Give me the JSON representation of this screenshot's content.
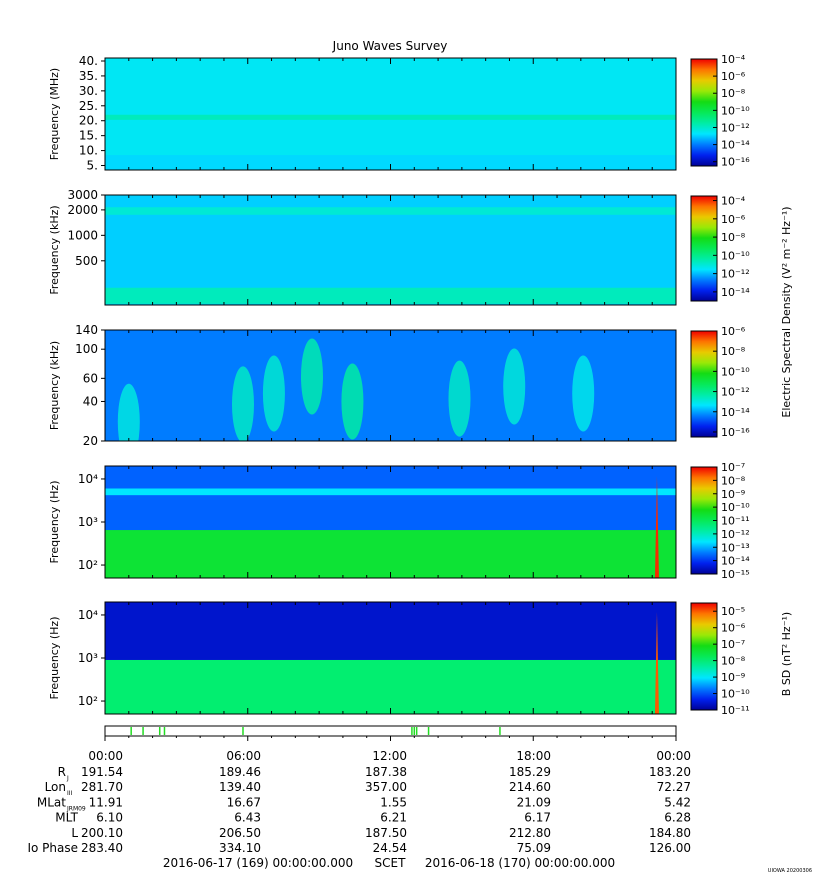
{
  "title": "Juno Waves Survey",
  "corner_stamp": "UIOWA 20200306",
  "cbar_label_E": "Electric Spectral Density (V² m⁻² Hz⁻¹)",
  "cbar_label_B": "B SD (nT² Hz⁻¹)",
  "chart_data": [
    {
      "type": "heatmap",
      "panel": "high-frequency",
      "ylabel": "Frequency (MHz)",
      "yscale": "linear",
      "ylim": [
        3.5,
        41
      ],
      "yticks": [
        5,
        10,
        15,
        20,
        25,
        30,
        35,
        40
      ],
      "ytick_labels": [
        "5.",
        "10.",
        "15.",
        "20.",
        "25.",
        "30.",
        "35.",
        "40."
      ],
      "cbar_range": [
        -16.5,
        -4
      ],
      "cbar_ticks": [
        -4,
        -6,
        -8,
        -10,
        -12,
        -14,
        -16
      ],
      "background_log_level": -12.6,
      "features": [
        {
          "kind": "band",
          "y0": 20.3,
          "y1": 22.0,
          "level": -11.8
        },
        {
          "kind": "band",
          "y0": 3.5,
          "y1": 8.5,
          "level": -12.9
        }
      ]
    },
    {
      "type": "heatmap",
      "panel": "medium-frequency",
      "ylabel": "Frequency (kHz)",
      "yscale": "log",
      "ylim": [
        150,
        3000
      ],
      "yticks": [
        500,
        1000,
        2000,
        3000
      ],
      "ytick_labels": [
        "500",
        "1000",
        "2000",
        "3000"
      ],
      "cbar_range": [
        -15,
        -3.5
      ],
      "cbar_ticks": [
        -4,
        -6,
        -8,
        -10,
        -12,
        -14
      ],
      "background_log_level": -11.8,
      "features": [
        {
          "kind": "band",
          "y0": 1750,
          "y1": 2150,
          "level": -11.0
        },
        {
          "kind": "band",
          "y0": 155,
          "y1": 240,
          "level": -10.7
        }
      ]
    },
    {
      "type": "heatmap",
      "panel": "low-frequency",
      "ylabel": "Frequency (kHz)",
      "yscale": "log",
      "ylim": [
        20,
        140
      ],
      "yticks": [
        20,
        40,
        60,
        100,
        140
      ],
      "ytick_labels": [
        "20",
        "40",
        "60",
        "100",
        "140"
      ],
      "cbar_range": [
        -16.5,
        -6
      ],
      "cbar_ticks": [
        -6,
        -8,
        -10,
        -12,
        -14,
        -16
      ],
      "background_log_level": -14.4,
      "features": [
        {
          "kind": "blob",
          "t": 1.0,
          "f": 28,
          "level": -13.0
        },
        {
          "kind": "blob",
          "t": 5.8,
          "f": 38,
          "level": -12.7
        },
        {
          "kind": "blob",
          "t": 7.1,
          "f": 46,
          "level": -12.8
        },
        {
          "kind": "blob",
          "t": 8.7,
          "f": 62,
          "level": -12.4
        },
        {
          "kind": "blob",
          "t": 10.4,
          "f": 40,
          "level": -12.3
        },
        {
          "kind": "blob",
          "t": 14.9,
          "f": 42,
          "level": -12.7
        },
        {
          "kind": "blob",
          "t": 17.2,
          "f": 52,
          "level": -12.9
        },
        {
          "kind": "blob",
          "t": 20.1,
          "f": 46,
          "level": -13.1
        }
      ]
    },
    {
      "type": "heatmap",
      "panel": "waveform-E",
      "ylabel": "Frequency (Hz)",
      "yscale": "log",
      "ylim": [
        50,
        20000
      ],
      "yticks": [
        100,
        1000,
        10000
      ],
      "ytick_labels": [
        "10²",
        "10³",
        "10⁴"
      ],
      "cbar_range": [
        -15,
        -7
      ],
      "cbar_ticks": [
        -7,
        -8,
        -9,
        -10,
        -11,
        -12,
        -13,
        -14,
        -15
      ],
      "background_log_level": -13.6,
      "features": [
        {
          "kind": "band",
          "y0": 50,
          "y1": 650,
          "level": -10.6
        },
        {
          "kind": "band",
          "y0": 4200,
          "y1": 6000,
          "level": -12.6
        },
        {
          "kind": "spike",
          "t": 23.2,
          "level": -7.3
        }
      ]
    },
    {
      "type": "heatmap",
      "panel": "waveform-B",
      "ylabel": "Frequency (Hz)",
      "yscale": "log",
      "ylim": [
        50,
        20000
      ],
      "yticks": [
        100,
        1000,
        10000
      ],
      "ytick_labels": [
        "10²",
        "10³",
        "10⁴"
      ],
      "cbar_range": [
        -11,
        -4.5
      ],
      "cbar_ticks": [
        -5,
        -6,
        -7,
        -8,
        -9,
        -10,
        -11
      ],
      "background_log_level": -10.6,
      "features": [
        {
          "kind": "band",
          "y0": 50,
          "y1": 900,
          "level": -8.0
        },
        {
          "kind": "spike",
          "t": 23.2,
          "level": -5.0
        }
      ]
    }
  ],
  "activity_marks_hours": [
    1.1,
    1.6,
    2.3,
    2.5,
    5.8,
    12.9,
    13.0,
    13.1,
    13.6,
    16.6
  ],
  "time_labels": [
    "00:00",
    "06:00",
    "12:00",
    "18:00",
    "00:00"
  ],
  "ephemeris": [
    {
      "label": "R",
      "sub": "J",
      "values": [
        "191.54",
        "189.46",
        "187.38",
        "185.29",
        "183.20"
      ]
    },
    {
      "label": "Lon",
      "sub": "III",
      "values": [
        "281.70",
        "139.40",
        "357.00",
        "214.60",
        "72.27"
      ]
    },
    {
      "label": "MLat",
      "sub": "JRM09",
      "values": [
        "11.91",
        "16.67",
        "1.55",
        "21.09",
        "5.42"
      ]
    },
    {
      "label": "MLT",
      "sub": "",
      "values": [
        "6.10",
        "6.43",
        "6.21",
        "6.17",
        "6.28"
      ]
    },
    {
      "label": "L",
      "sub": "",
      "values": [
        "200.10",
        "206.50",
        "187.50",
        "212.80",
        "184.80"
      ]
    },
    {
      "label": "Io Phase",
      "sub": "",
      "values": [
        "283.40",
        "334.10",
        "24.54",
        "75.09",
        "126.00"
      ]
    }
  ],
  "footer": {
    "start": "2016-06-17 (169) 00:00:00.000",
    "scet": "SCET",
    "end": "2016-06-18 (170) 00:00:00.000"
  }
}
